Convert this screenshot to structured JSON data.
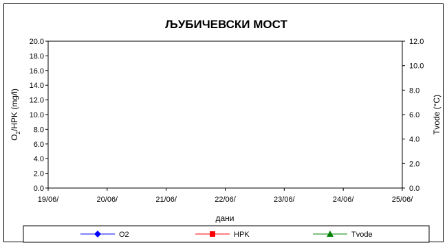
{
  "chart_data": {
    "type": "line",
    "title": "ЉУБИЧЕВСКИ МОСТ",
    "xlabel": "дани",
    "ylabel_left_main": "O",
    "ylabel_left_sub": "2",
    "ylabel_left_rest": "/HPK (mg/l)",
    "ylabel_right": "Tvode (°C)",
    "x_ticks": [
      "19/06/",
      "20/06/",
      "21/06/",
      "22/06/",
      "23/06/",
      "24/06/",
      "25/06/"
    ],
    "ylim_left": [
      0,
      20
    ],
    "ylim_right": [
      0,
      12
    ],
    "y_ticks_left": [
      "0.0",
      "2.0",
      "4.0",
      "6.0",
      "8.0",
      "10.0",
      "12.0",
      "14.0",
      "16.0",
      "18.0",
      "20.0"
    ],
    "y_ticks_right": [
      "0.0",
      "2.0",
      "4.0",
      "6.0",
      "8.0",
      "10.0",
      "12.0"
    ],
    "grid": false,
    "legend_position": "bottom",
    "series": [
      {
        "name": "O2",
        "color": "#0000ff",
        "marker": "diamond",
        "values": []
      },
      {
        "name": "HPK",
        "color": "#ff0000",
        "marker": "square",
        "values": []
      },
      {
        "name": "Tvode",
        "color": "#008000",
        "marker": "triangle",
        "values": []
      }
    ],
    "plot_background": "#808080"
  }
}
